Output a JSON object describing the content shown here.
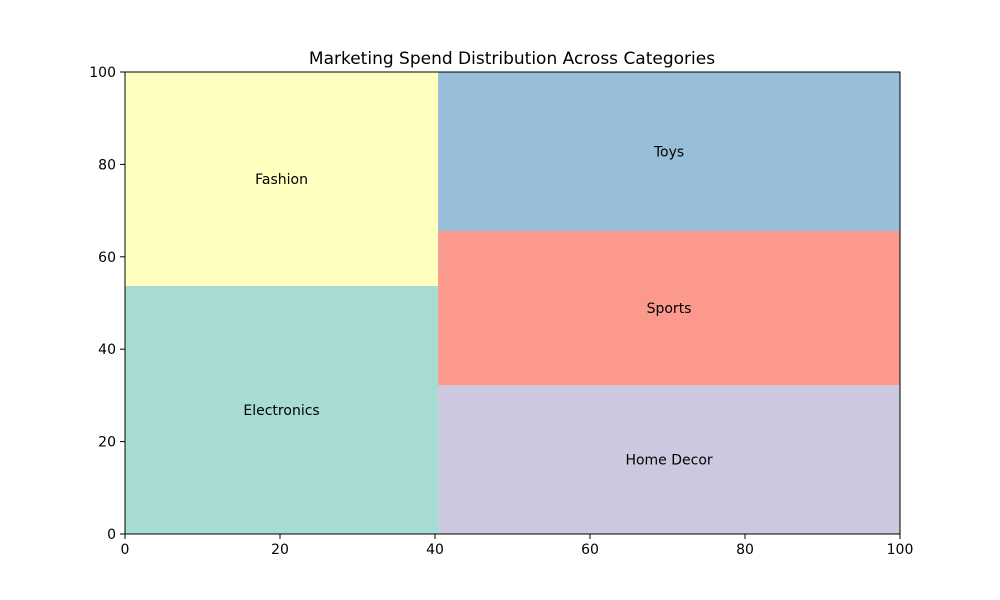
{
  "chart_data": {
    "type": "treemap",
    "title": "Marketing Spend Distribution Across Categories",
    "xlabel": "",
    "ylabel": "",
    "xlim": [
      0,
      100
    ],
    "ylim": [
      0,
      100
    ],
    "xticks": [
      0,
      20,
      40,
      60,
      80,
      100
    ],
    "yticks": [
      0,
      20,
      40,
      60,
      80,
      100
    ],
    "grid": false,
    "cells": [
      {
        "label": "Electronics",
        "x0": 0,
        "x1": 40.4,
        "y0": 0,
        "y1": 53.7,
        "color": "#a6dcd3"
      },
      {
        "label": "Fashion",
        "x0": 0,
        "x1": 40.4,
        "y0": 53.7,
        "y1": 100,
        "color": "#ffffc0"
      },
      {
        "label": "Home Decor",
        "x0": 40.4,
        "x1": 100,
        "y0": 0,
        "y1": 32.2,
        "color": "#cbc8e0"
      },
      {
        "label": "Sports",
        "x0": 40.4,
        "x1": 100,
        "y0": 32.2,
        "y1": 65.6,
        "color": "#fb998c"
      },
      {
        "label": "Toys",
        "x0": 40.4,
        "x1": 100,
        "y0": 65.6,
        "y1": 100,
        "color": "#98bfd9"
      }
    ]
  }
}
